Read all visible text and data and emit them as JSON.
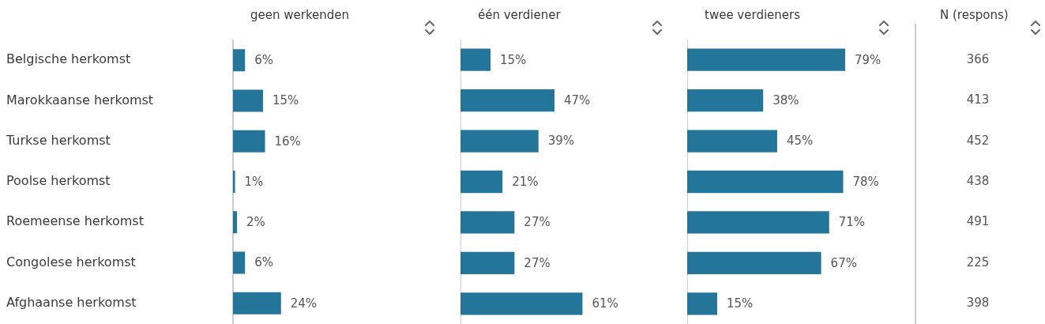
{
  "chart_data": [
    {
      "type": "bar",
      "orientation": "horizontal",
      "title": "geen werkenden",
      "categories": [
        "Belgische herkomst",
        "Marokkaanse herkomst",
        "Turkse herkomst",
        "Poolse herkomst",
        "Roemeense herkomst",
        "Congolese herkomst",
        "Afghaanse herkomst"
      ],
      "values": [
        6,
        15,
        16,
        1,
        2,
        6,
        24
      ],
      "value_labels": [
        "6%",
        "15%",
        "16%",
        "1%",
        "2%",
        "6%",
        "24%"
      ],
      "color": "#23769a",
      "tick_labels": "y",
      "legend": false
    },
    {
      "type": "bar",
      "orientation": "horizontal",
      "title": "één verdiener",
      "categories": [
        null,
        null,
        null,
        null,
        null,
        null,
        null
      ],
      "values": [
        15,
        47,
        39,
        21,
        27,
        27,
        61
      ],
      "value_labels": [
        "15%",
        "47%",
        "39%",
        "21%",
        "27%",
        "27%",
        "61%"
      ],
      "color": "#23769a",
      "tick_labels": false,
      "legend": false
    },
    {
      "type": "bar",
      "orientation": "horizontal",
      "title": "twee verdieners",
      "categories": [
        null,
        null,
        null,
        null,
        null,
        null,
        null
      ],
      "values": [
        79,
        38,
        45,
        78,
        71,
        67,
        15
      ],
      "value_labels": [
        "79%",
        "38%",
        "45%",
        "78%",
        "71%",
        "67%",
        "15%"
      ],
      "color": "#23769a",
      "tick_labels": false,
      "legend": false
    },
    {
      "type": "other",
      "title": "N (respons)",
      "values": [
        366,
        413,
        452,
        438,
        491,
        225,
        398
      ],
      "data_labels": true
    }
  ]
}
